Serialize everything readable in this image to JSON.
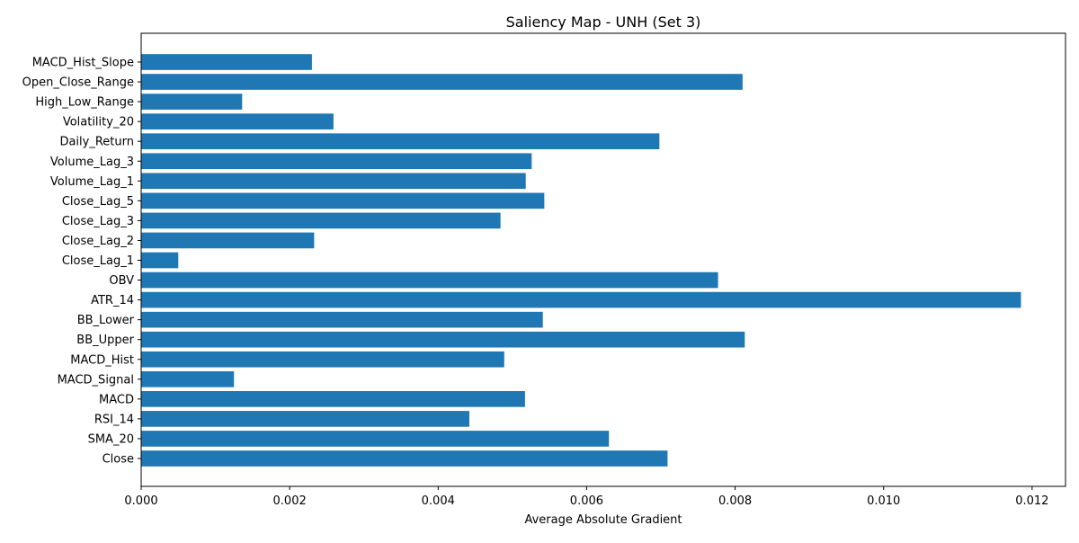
{
  "chart_data": {
    "type": "bar",
    "orientation": "horizontal",
    "title": "Saliency Map - UNH (Set 3)",
    "xlabel": "Average Absolute Gradient",
    "ylabel": "",
    "xlim": [
      0,
      0.01245
    ],
    "x_ticks": [
      0,
      0.002,
      0.004,
      0.006,
      0.008,
      0.01,
      0.012
    ],
    "x_tick_labels": [
      "0.000",
      "0.002",
      "0.004",
      "0.006",
      "0.008",
      "0.010",
      "0.012"
    ],
    "categories": [
      "Close",
      "SMA_20",
      "RSI_14",
      "MACD",
      "MACD_Signal",
      "MACD_Hist",
      "BB_Upper",
      "BB_Lower",
      "ATR_14",
      "OBV",
      "Close_Lag_1",
      "Close_Lag_2",
      "Close_Lag_3",
      "Close_Lag_5",
      "Volume_Lag_1",
      "Volume_Lag_3",
      "Daily_Return",
      "Volatility_20",
      "High_Low_Range",
      "Open_Close_Range",
      "MACD_Hist_Slope"
    ],
    "values": [
      0.00709,
      0.0063,
      0.00442,
      0.00517,
      0.00125,
      0.00489,
      0.00813,
      0.00541,
      0.01185,
      0.00777,
      0.0005,
      0.00233,
      0.00484,
      0.00543,
      0.00518,
      0.00526,
      0.00698,
      0.00259,
      0.00136,
      0.0081,
      0.0023
    ],
    "bar_color": "#1f77b4",
    "grid": false,
    "legend": "none"
  }
}
